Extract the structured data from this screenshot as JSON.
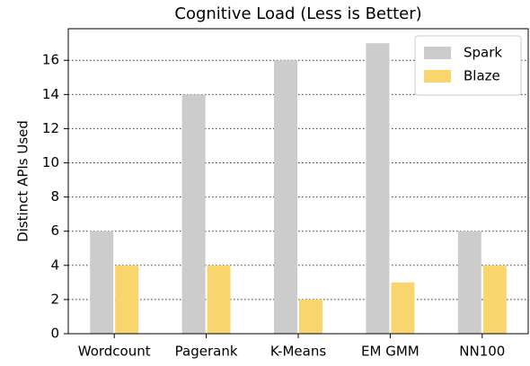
{
  "chart_data": {
    "type": "bar",
    "title": "Cognitive Load (Less is Better)",
    "y_label": "Distinct APIs Used",
    "categories": [
      "Wordcount",
      "Pagerank",
      "K-Means",
      "EM GMM",
      "NN100"
    ],
    "series": [
      {
        "name": "Spark",
        "color": "#cccccc",
        "values": [
          6,
          14,
          16,
          17,
          6
        ]
      },
      {
        "name": "Blaze",
        "color": "#f9d56e",
        "values": [
          4,
          4,
          2,
          3,
          4
        ]
      }
    ],
    "ylim": [
      0,
      17.85
    ],
    "yticks": [
      0,
      2,
      4,
      6,
      8,
      10,
      12,
      14,
      16
    ],
    "grid": true,
    "legend": "upper right"
  }
}
